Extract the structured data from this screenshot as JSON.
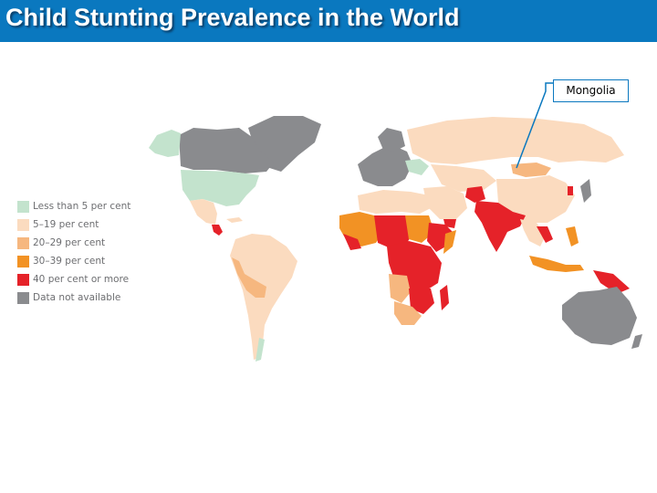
{
  "title": "Child Stunting Prevalence in the World",
  "callout": {
    "label": "Mongolia"
  },
  "legend": {
    "items": [
      {
        "label": "Less than 5 per cent",
        "color": "#c3e3cd"
      },
      {
        "label": "5–19 per cent",
        "color": "#fbdbbf"
      },
      {
        "label": "20–29 per cent",
        "color": "#f6b77f"
      },
      {
        "label": "30–39 per cent",
        "color": "#f29224"
      },
      {
        "label": "40 per cent or more",
        "color": "#e52229"
      },
      {
        "label": "Data not available",
        "color": "#8a8b8e"
      }
    ]
  },
  "colors": {
    "title_bar": "#0a78bf",
    "callout_line": "#0a78bf",
    "legend_text": "#6d6e71",
    "map_light": "#fbdbbf"
  }
}
